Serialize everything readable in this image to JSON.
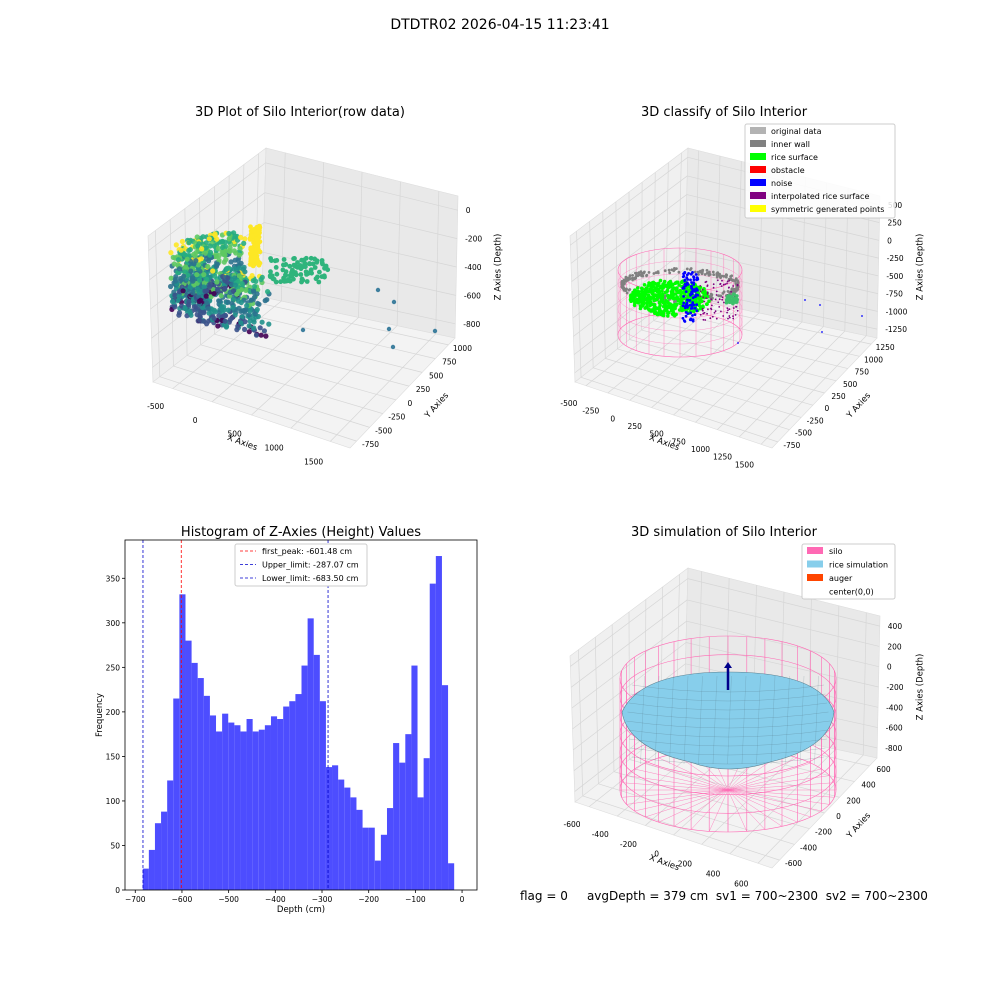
{
  "figure": {
    "suptitle": "DTDTR02 2026-04-15 11:23:41",
    "status": {
      "flag": "flag = 0",
      "avgDepth": "avgDepth = 379 cm",
      "sv1": "sv1 = 700~2300",
      "sv2": "sv2 = 700~2300"
    }
  },
  "colors": {
    "histogram_bar": "#4d4dff",
    "first_peak_line": "#ff0000",
    "limit_lines": "#0000cc",
    "original_data": "#b3b3b3",
    "inner_wall": "#808080",
    "rice_surface": "#00ff00",
    "obstacle": "#ff0000",
    "noise": "#0000ff",
    "interpolated_rice_surface": "#800080",
    "symmetric_generated_points": "#ffff00",
    "silo": "#ff69b4",
    "rice_simulation": "#87ceeb",
    "auger": "#ff4500"
  },
  "chart_data": [
    {
      "type": "scatter",
      "title": "3D Plot of Silo Interior(row data)",
      "xlabel": "X Axies",
      "ylabel": "Y Axies",
      "zlabel": "Z Axies (Depth)",
      "x_ticks": [
        "-500",
        "0",
        "500",
        "1000",
        "1500"
      ],
      "y_ticks": [
        "-750",
        "-500",
        "-250",
        "0",
        "250",
        "500",
        "750",
        "1000"
      ],
      "z_ticks": [
        "-800",
        "-600",
        "-400",
        "-200",
        "0"
      ],
      "colormap": "viridis"
    },
    {
      "type": "scatter",
      "title": "3D classify of Silo Interior",
      "xlabel": "X Axies",
      "ylabel": "Y Axies",
      "zlabel": "Z Axies (Depth)",
      "x_ticks": [
        "-500",
        "-250",
        "0",
        "250",
        "500",
        "750",
        "1000",
        "1250",
        "1500"
      ],
      "y_ticks": [
        "-750",
        "-500",
        "-250",
        "0",
        "250",
        "500",
        "750",
        "1000",
        "1250"
      ],
      "z_ticks": [
        "-1250",
        "-1000",
        "-750",
        "-500",
        "-250",
        "0",
        "250",
        "500"
      ],
      "legend_position": "top-right",
      "legend": [
        {
          "label": "original data",
          "color": "#b3b3b3"
        },
        {
          "label": "inner wall",
          "color": "#808080"
        },
        {
          "label": "rice surface",
          "color": "#00ff00"
        },
        {
          "label": "obstacle",
          "color": "#ff0000"
        },
        {
          "label": "noise",
          "color": "#0000ff"
        },
        {
          "label": "interpolated rice surface",
          "color": "#800080"
        },
        {
          "label": "symmetric generated points",
          "color": "#ffff00"
        }
      ]
    },
    {
      "type": "bar",
      "title": "Histogram of Z-Axies (Height) Values",
      "xlabel": "Depth (cm)",
      "ylabel": "Frequency",
      "xlim": [
        -722,
        32
      ],
      "ylim": [
        0,
        393
      ],
      "x_ticks": [
        -700,
        -600,
        -500,
        -400,
        -300,
        -200,
        -100,
        0
      ],
      "y_ticks": [
        0,
        50,
        100,
        150,
        200,
        250,
        300,
        350
      ],
      "bin_start": -684,
      "bin_width": 13.08,
      "values": [
        24,
        45,
        75,
        88,
        123,
        215,
        332,
        280,
        255,
        238,
        218,
        196,
        178,
        198,
        188,
        185,
        178,
        192,
        178,
        180,
        185,
        195,
        192,
        206,
        212,
        220,
        252,
        305,
        264,
        212,
        138,
        140,
        124,
        115,
        104,
        90,
        70,
        70,
        33,
        62,
        92,
        165,
        143,
        175,
        252,
        104,
        148,
        344,
        375,
        230,
        30
      ],
      "legend_position": "top-center",
      "vlines": [
        {
          "label": "first_peak: -601.48 cm",
          "x": -601.48,
          "color": "#ff0000"
        },
        {
          "label": "Upper_limit: -287.07 cm",
          "x": -287.07,
          "color": "#0000cc"
        },
        {
          "label": "Lower_limit: -683.50 cm",
          "x": -683.5,
          "color": "#0000cc"
        }
      ],
      "grid": false
    },
    {
      "type": "scatter",
      "title": "3D simulation of Silo Interior",
      "xlabel": "X Axies",
      "ylabel": "Y Axies",
      "zlabel": "Z Axies (Depth)",
      "x_ticks": [
        "-600",
        "-400",
        "-200",
        "0",
        "200",
        "400",
        "600"
      ],
      "y_ticks": [
        "-600",
        "-400",
        "-200",
        "0",
        "200",
        "400",
        "600"
      ],
      "z_ticks": [
        "-800",
        "-600",
        "-400",
        "-200",
        "0",
        "200",
        "400"
      ],
      "legend_position": "top-right",
      "legend": [
        {
          "label": "silo",
          "color": "#ff69b4"
        },
        {
          "label": "rice simulation",
          "color": "#87ceeb"
        },
        {
          "label": "auger",
          "color": "#ff4500"
        },
        {
          "label": "center(0,0)",
          "color": ""
        }
      ]
    }
  ]
}
